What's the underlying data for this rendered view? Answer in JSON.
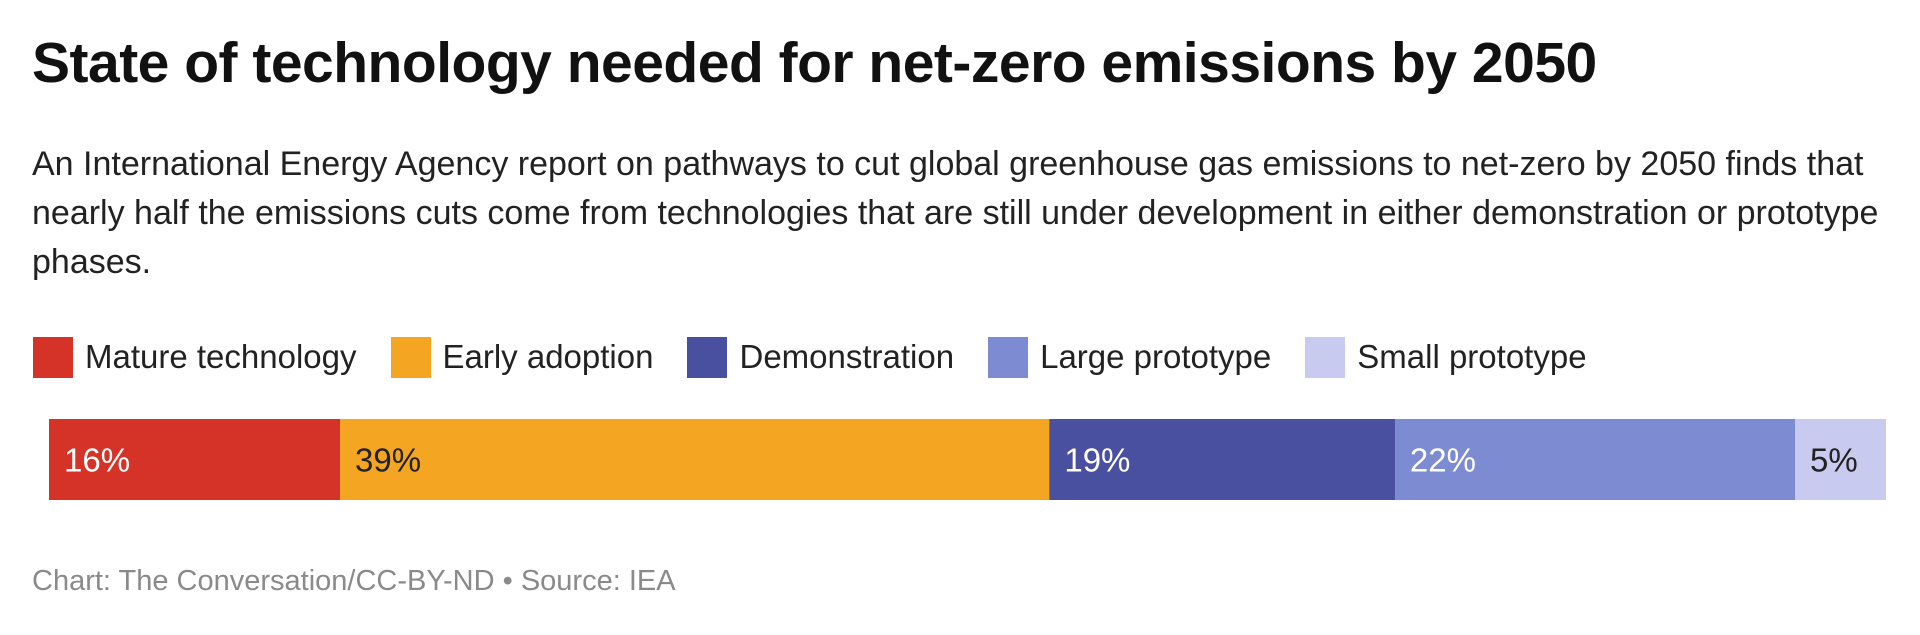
{
  "title": "State of technology needed for net-zero emissions by 2050",
  "subtitle": "An International Energy Agency report on pathways to cut global greenhouse gas emissions to net-zero by 2050 finds that nearly half the emissions cuts come from technologies that are still under development in either demonstration or prototype phases.",
  "footer": "Chart: The Conversation/CC-BY-ND • Source: IEA",
  "chart_data": {
    "type": "bar",
    "orientation": "horizontal-stacked",
    "categories": [
      ""
    ],
    "series": [
      {
        "name": "Mature technology",
        "values": [
          16
        ],
        "label": "16%",
        "color": "#d63328",
        "label_color": "#ffffff"
      },
      {
        "name": "Early adoption",
        "values": [
          39
        ],
        "label": "39%",
        "color": "#f4a623",
        "label_color": "#222222"
      },
      {
        "name": "Demonstration",
        "values": [
          19
        ],
        "label": "19%",
        "color": "#4a50a0",
        "label_color": "#ffffff"
      },
      {
        "name": "Large prototype",
        "values": [
          22
        ],
        "label": "22%",
        "color": "#7c8bd2",
        "label_color": "#ffffff"
      },
      {
        "name": "Small prototype",
        "values": [
          5
        ],
        "label": "5%",
        "color": "#c8cbef",
        "label_color": "#222222"
      }
    ],
    "legend": "top-left",
    "grid": false
  }
}
